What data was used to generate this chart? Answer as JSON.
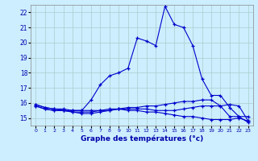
{
  "title": "Graphe des températures (°c)",
  "background_color": "#cceeff",
  "grid_color": "#aacccc",
  "line_color": "#0000cc",
  "xlim": [
    -0.5,
    23.5
  ],
  "ylim": [
    14.5,
    22.5
  ],
  "xticks": [
    0,
    1,
    2,
    3,
    4,
    5,
    6,
    7,
    8,
    9,
    10,
    11,
    12,
    13,
    14,
    15,
    16,
    17,
    18,
    19,
    20,
    21,
    22,
    23
  ],
  "yticks": [
    15,
    16,
    17,
    18,
    19,
    20,
    21,
    22
  ],
  "series": [
    {
      "x": [
        0,
        1,
        2,
        3,
        4,
        5,
        6,
        7,
        8,
        9,
        10,
        11,
        12,
        13,
        14,
        15,
        16,
        17,
        18,
        19,
        20,
        21,
        22,
        23
      ],
      "y": [
        15.9,
        15.7,
        15.6,
        15.6,
        15.5,
        15.5,
        16.2,
        17.2,
        17.8,
        18.0,
        18.3,
        20.3,
        20.1,
        19.8,
        22.4,
        21.2,
        21.0,
        19.8,
        17.6,
        16.5,
        16.5,
        15.7,
        15.1,
        15.1
      ]
    },
    {
      "x": [
        0,
        1,
        2,
        3,
        4,
        5,
        6,
        7,
        8,
        9,
        10,
        11,
        12,
        13,
        14,
        15,
        16,
        17,
        18,
        19,
        20,
        21,
        22,
        23
      ],
      "y": [
        15.9,
        15.7,
        15.6,
        15.5,
        15.5,
        15.5,
        15.5,
        15.5,
        15.6,
        15.6,
        15.6,
        15.6,
        15.6,
        15.5,
        15.5,
        15.5,
        15.6,
        15.7,
        15.8,
        15.8,
        15.8,
        15.9,
        15.8,
        14.8
      ]
    },
    {
      "x": [
        0,
        1,
        2,
        3,
        4,
        5,
        6,
        7,
        8,
        9,
        10,
        11,
        12,
        13,
        14,
        15,
        16,
        17,
        18,
        19,
        20,
        21,
        22,
        23
      ],
      "y": [
        15.8,
        15.6,
        15.5,
        15.5,
        15.4,
        15.4,
        15.4,
        15.5,
        15.5,
        15.6,
        15.5,
        15.5,
        15.4,
        15.4,
        15.3,
        15.2,
        15.1,
        15.1,
        15.0,
        14.9,
        14.9,
        14.9,
        15.0,
        14.8
      ]
    },
    {
      "x": [
        0,
        1,
        2,
        3,
        4,
        5,
        6,
        7,
        8,
        9,
        10,
        11,
        12,
        13,
        14,
        15,
        16,
        17,
        18,
        19,
        20,
        21,
        22,
        23
      ],
      "y": [
        15.8,
        15.6,
        15.5,
        15.5,
        15.4,
        15.3,
        15.3,
        15.4,
        15.5,
        15.6,
        15.7,
        15.7,
        15.8,
        15.8,
        15.9,
        16.0,
        16.1,
        16.1,
        16.2,
        16.2,
        15.8,
        15.1,
        15.1,
        14.7
      ]
    }
  ]
}
